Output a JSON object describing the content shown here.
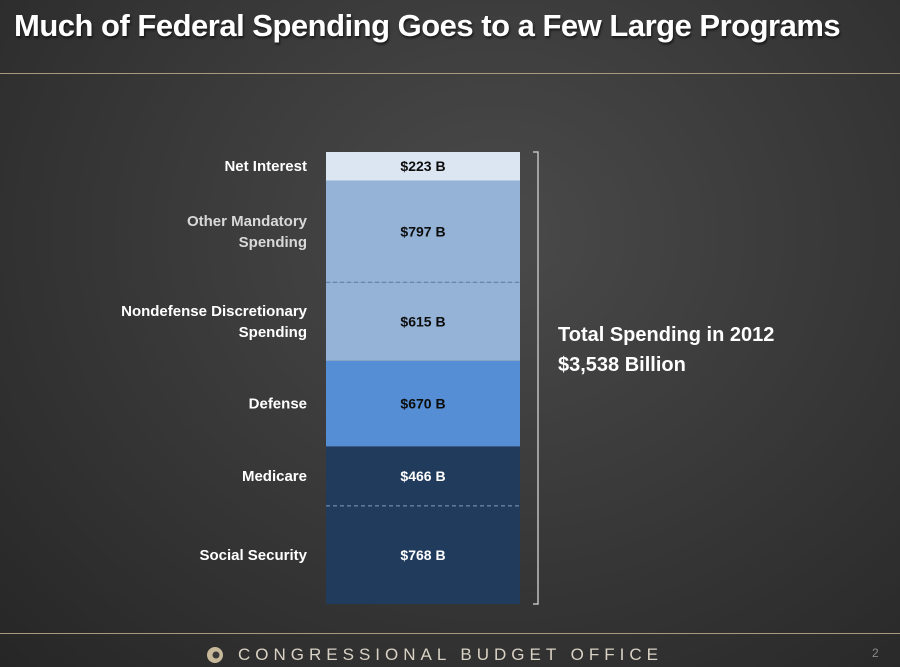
{
  "title": "Much of Federal Spending Goes to a Few Large Programs",
  "chart_data": {
    "type": "bar",
    "stacked": true,
    "unit": "billions of dollars",
    "categories": [
      "Social Security",
      "Medicare",
      "Defense",
      "Nondefense Discretionary Spending",
      "Other Mandatory Spending",
      "Net Interest"
    ],
    "values": [
      768,
      466,
      670,
      615,
      797,
      223
    ],
    "data_labels": [
      "$768 B",
      "$466 B",
      "$670 B",
      "$615 B",
      "$797 B",
      "$223 B"
    ],
    "colors": [
      "#213b5c",
      "#213b5c",
      "#558ed5",
      "#95b3d7",
      "#95b3d7",
      "#dce6f2"
    ],
    "label_colors": [
      "#ffffff",
      "#ffffff",
      "#0d0d0d",
      "#0d0d0d",
      "#0d0d0d",
      "#0d0d0d"
    ],
    "annotation_line1": "Total Spending in 2012",
    "annotation_line2": "$3,538 Billion",
    "total": 3538
  },
  "footer": {
    "organization": "CONGRESSIONAL BUDGET OFFICE",
    "page_number": "2",
    "logo_icon": "cbo-logo-icon"
  }
}
